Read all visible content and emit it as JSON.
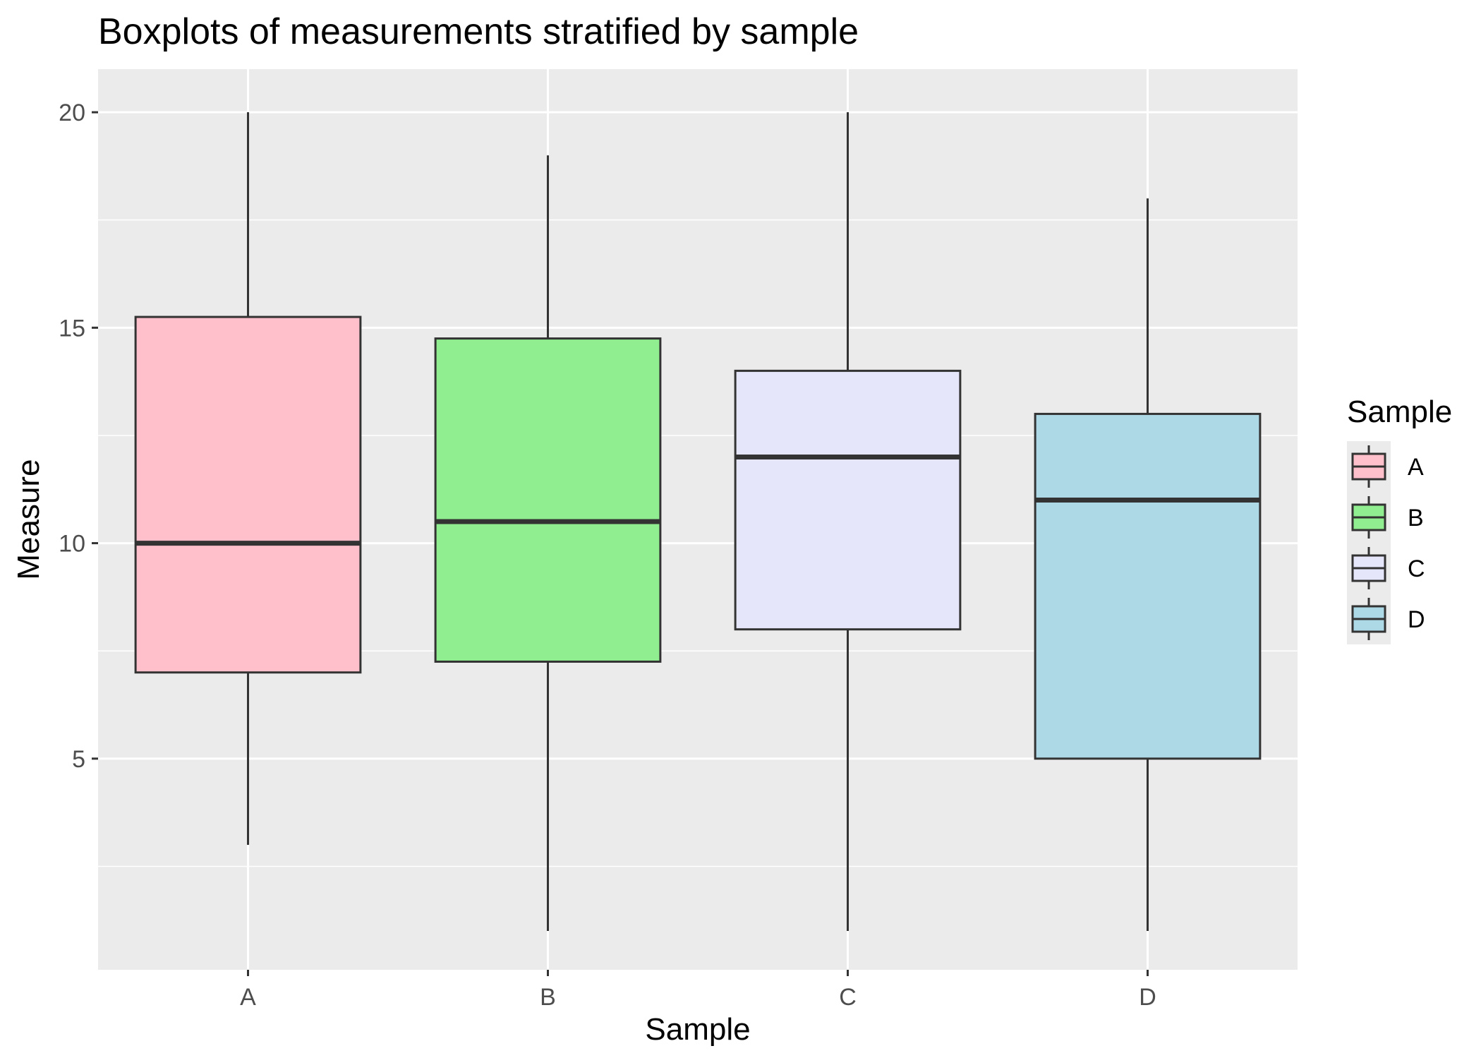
{
  "chart_data": {
    "type": "boxplot",
    "title": "Boxplots of measurements stratified by sample",
    "xlabel": "Sample",
    "ylabel": "Measure",
    "ylim": [
      0.1,
      21.0
    ],
    "y_ticks": [
      5,
      10,
      15,
      20
    ],
    "grid": true,
    "legend": {
      "title": "Sample",
      "position": "right"
    },
    "categories": [
      "A",
      "B",
      "C",
      "D"
    ],
    "boxes": [
      {
        "name": "A",
        "min": 3,
        "q1": 7,
        "median": 10,
        "q3": 15.25,
        "max": 20,
        "color": "#ffc0cb"
      },
      {
        "name": "B",
        "min": 1,
        "q1": 7.25,
        "median": 10.5,
        "q3": 14.75,
        "max": 19,
        "color": "#90ee90"
      },
      {
        "name": "C",
        "min": 1,
        "q1": 8,
        "median": 12,
        "q3": 14,
        "max": 20,
        "color": "#e6e6fa"
      },
      {
        "name": "D",
        "min": 1,
        "q1": 5,
        "median": 11,
        "q3": 13,
        "max": 18,
        "color": "#add8e6"
      }
    ],
    "colors": {
      "panel": "#ebebeb",
      "grid": "#ffffff",
      "box_outline": "#333333"
    }
  }
}
